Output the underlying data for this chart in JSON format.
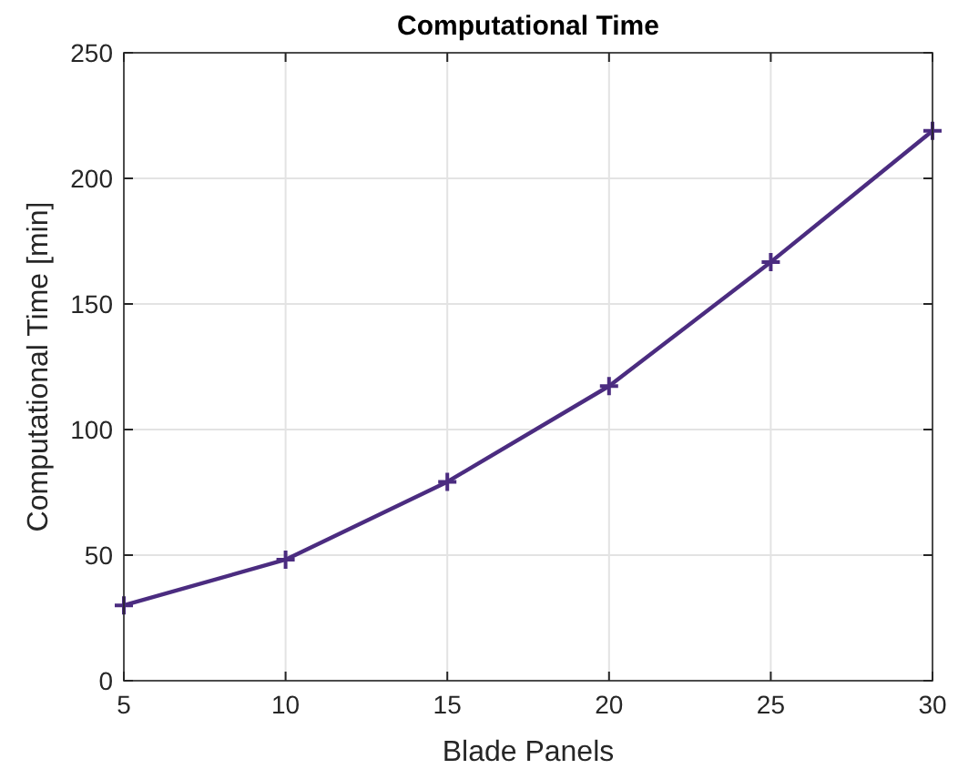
{
  "chart_data": {
    "type": "line",
    "title": "Computational Time",
    "xlabel": "Blade Panels",
    "ylabel": "Computational Time [min]",
    "x": [
      5,
      10,
      15,
      20,
      25,
      30
    ],
    "series": [
      {
        "color": "#4b2c80",
        "values": [
          30,
          48.2,
          79.2,
          117.3,
          166.7,
          218.9
        ]
      }
    ],
    "xlim": [
      5,
      30
    ],
    "xticks": [
      5,
      10,
      15,
      20,
      25,
      30
    ],
    "ylim": [
      0,
      250
    ],
    "yticks": [
      0,
      50,
      100,
      150,
      200,
      250
    ],
    "grid": true,
    "marker": "cross",
    "line_style": "solid"
  }
}
